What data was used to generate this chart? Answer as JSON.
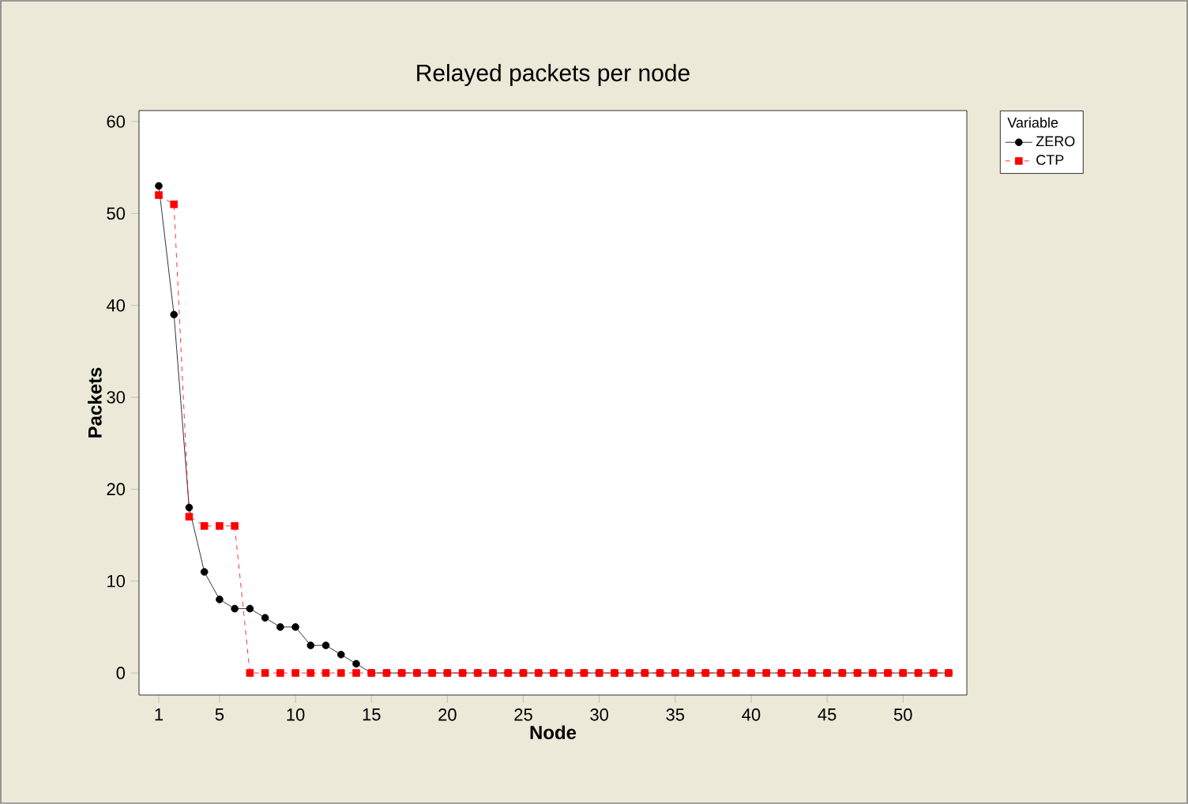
{
  "chart_data": {
    "type": "line",
    "title": "Relayed packets per node",
    "xlabel": "Node",
    "ylabel": "Packets",
    "legend_title": "Variable",
    "legend": "top right",
    "grid": false,
    "x": [
      1,
      2,
      3,
      4,
      5,
      6,
      7,
      8,
      9,
      10,
      11,
      12,
      13,
      14,
      15,
      16,
      17,
      18,
      19,
      20,
      21,
      22,
      23,
      24,
      25,
      26,
      27,
      28,
      29,
      30,
      31,
      32,
      33,
      34,
      35,
      36,
      37,
      38,
      39,
      40,
      41,
      42,
      43,
      44,
      45,
      46,
      47,
      48,
      49,
      50,
      51,
      52,
      53
    ],
    "series": [
      {
        "name": "ZERO",
        "color": "#000000",
        "marker": "circle",
        "line_style": "solid",
        "values": [
          53,
          39,
          18,
          11,
          8,
          7,
          7,
          6,
          5,
          5,
          3,
          3,
          2,
          1,
          0,
          0,
          0,
          0,
          0,
          0,
          0,
          0,
          0,
          0,
          0,
          0,
          0,
          0,
          0,
          0,
          0,
          0,
          0,
          0,
          0,
          0,
          0,
          0,
          0,
          0,
          0,
          0,
          0,
          0,
          0,
          0,
          0,
          0,
          0,
          0,
          0,
          0,
          0
        ]
      },
      {
        "name": "CTP",
        "color": "#ff0000",
        "marker": "square",
        "line_style": "dashed",
        "values": [
          52,
          51,
          17,
          16,
          16,
          16,
          0,
          0,
          0,
          0,
          0,
          0,
          0,
          0,
          0,
          0,
          0,
          0,
          0,
          0,
          0,
          0,
          0,
          0,
          0,
          0,
          0,
          0,
          0,
          0,
          0,
          0,
          0,
          0,
          0,
          0,
          0,
          0,
          0,
          0,
          0,
          0,
          0,
          0,
          0,
          0,
          0,
          0,
          0,
          0,
          0,
          0,
          0
        ]
      }
    ],
    "xlim": [
      -0.3,
      54.2
    ],
    "ylim": [
      -2.4,
      61.2
    ],
    "xticks": [
      1,
      5,
      10,
      15,
      20,
      25,
      30,
      35,
      40,
      45,
      50
    ],
    "yticks": [
      0,
      10,
      20,
      30,
      40,
      50,
      60
    ]
  }
}
